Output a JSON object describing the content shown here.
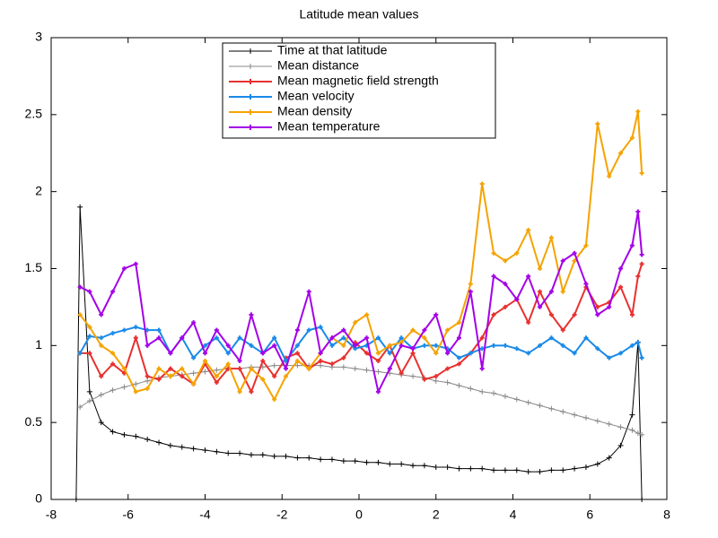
{
  "chart_data": {
    "type": "line",
    "title": "Latitude mean values",
    "x": [
      -7.35,
      -7.25,
      -7.0,
      -6.7,
      -6.4,
      -6.1,
      -5.8,
      -5.5,
      -5.2,
      -4.9,
      -4.6,
      -4.3,
      -4.0,
      -3.7,
      -3.4,
      -3.1,
      -2.8,
      -2.5,
      -2.2,
      -1.9,
      -1.6,
      -1.3,
      -1.0,
      -0.7,
      -0.4,
      -0.1,
      0.2,
      0.5,
      0.8,
      1.1,
      1.4,
      1.7,
      2.0,
      2.3,
      2.6,
      2.9,
      3.2,
      3.5,
      3.8,
      4.1,
      4.4,
      4.7,
      5.0,
      5.3,
      5.6,
      5.9,
      6.2,
      6.5,
      6.8,
      7.1,
      7.25,
      7.35
    ],
    "series": [
      {
        "name": "Time at that latitude",
        "color": "#000000",
        "values": [
          0,
          1.9,
          0.7,
          0.5,
          0.44,
          0.42,
          0.41,
          0.39,
          0.37,
          0.35,
          0.34,
          0.33,
          0.32,
          0.31,
          0.3,
          0.3,
          0.29,
          0.29,
          0.28,
          0.28,
          0.27,
          0.27,
          0.26,
          0.26,
          0.25,
          0.25,
          0.24,
          0.24,
          0.23,
          0.23,
          0.22,
          0.22,
          0.21,
          0.21,
          0.2,
          0.2,
          0.2,
          0.19,
          0.19,
          0.19,
          0.18,
          0.18,
          0.19,
          0.19,
          0.2,
          0.21,
          0.23,
          0.27,
          0.35,
          0.55,
          1.02,
          0
        ]
      },
      {
        "name": "Mean distance",
        "color": "#888888",
        "values": [
          null,
          0.6,
          0.64,
          0.68,
          0.71,
          0.73,
          0.75,
          0.77,
          0.79,
          0.8,
          0.81,
          0.82,
          0.83,
          0.84,
          0.85,
          0.85,
          0.86,
          0.86,
          0.87,
          0.87,
          0.87,
          0.87,
          0.87,
          0.86,
          0.86,
          0.85,
          0.84,
          0.83,
          0.82,
          0.81,
          0.8,
          0.79,
          0.77,
          0.76,
          0.74,
          0.72,
          0.7,
          0.69,
          0.67,
          0.65,
          0.63,
          0.61,
          0.59,
          0.57,
          0.55,
          0.53,
          0.51,
          0.49,
          0.47,
          0.45,
          0.43,
          0.42
        ]
      },
      {
        "name": "Mean magnetic field strength",
        "color": "#e8312f",
        "values": [
          null,
          0.95,
          0.95,
          0.8,
          0.88,
          0.82,
          1.05,
          0.8,
          0.78,
          0.85,
          0.8,
          0.75,
          0.88,
          0.76,
          0.85,
          0.85,
          0.7,
          0.9,
          0.8,
          0.92,
          0.95,
          0.85,
          0.9,
          0.88,
          0.92,
          1.02,
          0.95,
          0.9,
          1.0,
          0.82,
          0.95,
          0.78,
          0.8,
          0.85,
          0.88,
          0.95,
          1.05,
          1.2,
          1.25,
          1.3,
          1.15,
          1.35,
          1.2,
          1.1,
          1.2,
          1.38,
          1.25,
          1.28,
          1.38,
          1.2,
          1.45,
          1.53
        ]
      },
      {
        "name": "Mean velocity",
        "color": "#1a8ae8",
        "values": [
          null,
          0.95,
          1.06,
          1.05,
          1.08,
          1.1,
          1.12,
          1.1,
          1.1,
          0.95,
          1.05,
          0.92,
          1.0,
          1.05,
          0.95,
          1.05,
          1.0,
          0.95,
          1.05,
          0.9,
          1.0,
          1.1,
          1.12,
          1.0,
          1.05,
          0.98,
          1.0,
          1.05,
          0.95,
          1.05,
          0.98,
          1.0,
          1.0,
          0.98,
          0.92,
          0.95,
          0.98,
          1.0,
          1.0,
          0.98,
          0.95,
          1.0,
          1.05,
          1.0,
          0.95,
          1.05,
          0.98,
          0.92,
          0.95,
          1.0,
          1.02,
          0.92
        ]
      },
      {
        "name": "Mean density",
        "color": "#f5a300",
        "values": [
          null,
          1.2,
          1.12,
          1.0,
          0.95,
          0.85,
          0.7,
          0.72,
          0.85,
          0.8,
          0.85,
          0.75,
          0.9,
          0.8,
          0.88,
          0.7,
          0.85,
          0.78,
          0.65,
          0.8,
          0.9,
          0.85,
          0.95,
          1.05,
          1.0,
          1.15,
          1.2,
          0.95,
          1.0,
          1.02,
          1.1,
          1.05,
          0.95,
          1.1,
          1.15,
          1.4,
          2.05,
          1.6,
          1.55,
          1.6,
          1.75,
          1.5,
          1.7,
          1.35,
          1.55,
          1.65,
          2.44,
          2.1,
          2.25,
          2.35,
          2.52,
          2.12
        ]
      },
      {
        "name": "Mean temperature",
        "color": "#a400e8",
        "values": [
          null,
          1.38,
          1.35,
          1.2,
          1.35,
          1.5,
          1.53,
          1.0,
          1.05,
          0.95,
          1.05,
          1.15,
          0.95,
          1.1,
          1.0,
          0.9,
          1.2,
          0.95,
          1.0,
          0.85,
          1.1,
          1.35,
          0.95,
          1.05,
          1.1,
          1.0,
          1.05,
          0.7,
          0.85,
          1.0,
          0.98,
          1.1,
          1.2,
          0.95,
          1.05,
          1.35,
          0.85,
          1.45,
          1.4,
          1.3,
          1.45,
          1.25,
          1.35,
          1.55,
          1.6,
          1.4,
          1.2,
          1.25,
          1.5,
          1.65,
          1.87,
          1.59
        ]
      }
    ],
    "xlim": [
      -8,
      8
    ],
    "xticks": [
      -8,
      -6,
      -4,
      -2,
      0,
      2,
      4,
      6,
      8
    ],
    "ylim": [
      0,
      3
    ],
    "yticks": [
      0,
      0.5,
      1,
      1.5,
      2,
      2.5,
      3
    ],
    "legend": "top"
  }
}
